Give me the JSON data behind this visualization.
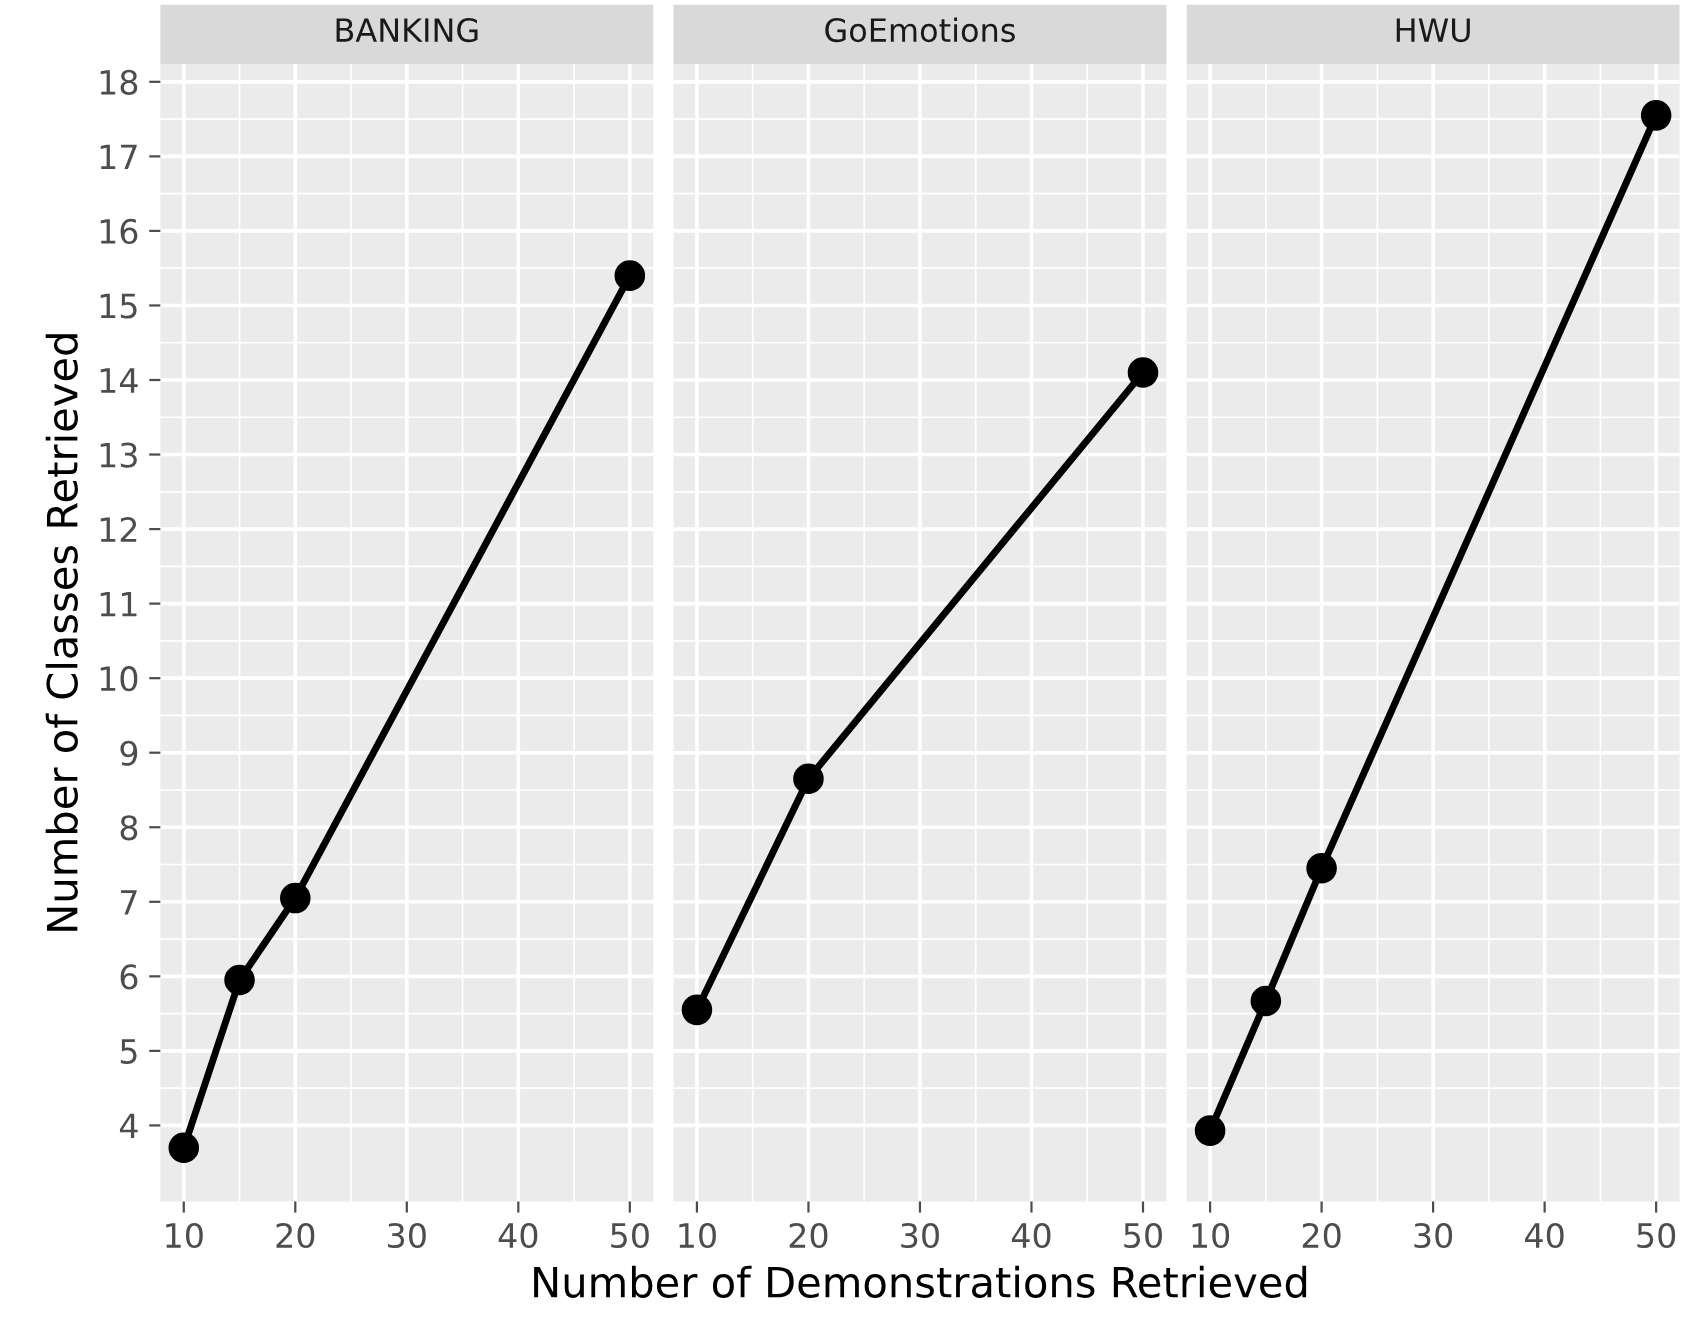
{
  "chart_data": [
    {
      "type": "line",
      "title": "BANKING",
      "ylabel": "Number of Classes Retrieved",
      "x": [
        10,
        15,
        20,
        50
      ],
      "series": [
        {
          "color": "#000000",
          "values": [
            3.7,
            5.95,
            7.05,
            15.4
          ]
        }
      ],
      "xlim": [
        7.9,
        52.1
      ],
      "ylim": [
        2.98,
        18.24
      ],
      "xticks": [
        10,
        20,
        30,
        40,
        50
      ],
      "yticks": [
        4,
        5,
        6,
        7,
        8,
        9,
        10,
        11,
        12,
        13,
        14,
        15,
        16,
        17,
        18
      ],
      "grid": true,
      "marker": "circle",
      "line_style": "solid"
    },
    {
      "type": "line",
      "title": "GoEmotions",
      "xlabel": "Number of Demonstrations Retrieved",
      "x": [
        10,
        20,
        50
      ],
      "series": [
        {
          "color": "#000000",
          "values": [
            5.55,
            8.65,
            14.1
          ]
        }
      ],
      "xlim": [
        7.9,
        52.1
      ],
      "ylim": [
        2.98,
        18.24
      ],
      "xticks": [
        10,
        20,
        30,
        40,
        50
      ],
      "yticks": [
        4,
        5,
        6,
        7,
        8,
        9,
        10,
        11,
        12,
        13,
        14,
        15,
        16,
        17,
        18
      ],
      "tick_labels": "x",
      "grid": true,
      "marker": "circle",
      "line_style": "solid"
    },
    {
      "type": "line",
      "title": "HWU",
      "x": [
        10,
        15,
        20,
        50
      ],
      "series": [
        {
          "color": "#000000",
          "values": [
            3.93,
            5.67,
            7.45,
            17.55
          ]
        }
      ],
      "xlim": [
        7.9,
        52.1
      ],
      "ylim": [
        2.98,
        18.24
      ],
      "xticks": [
        10,
        20,
        30,
        40,
        50
      ],
      "yticks": [
        4,
        5,
        6,
        7,
        8,
        9,
        10,
        11,
        12,
        13,
        14,
        15,
        16,
        17,
        18
      ],
      "tick_labels": "x",
      "grid": true,
      "marker": "circle",
      "line_style": "solid"
    }
  ]
}
